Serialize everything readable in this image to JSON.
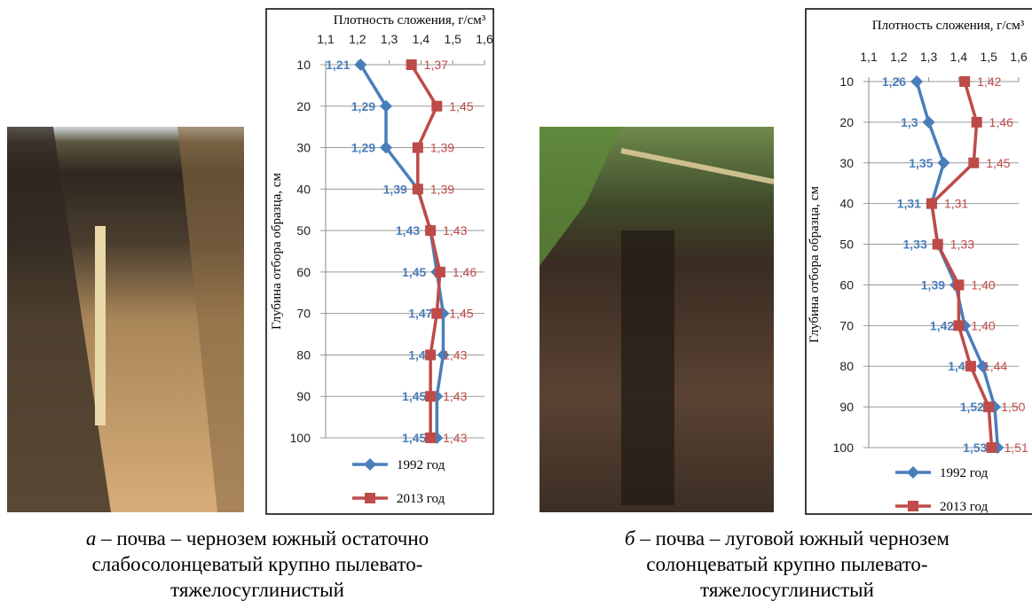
{
  "chart_data": [
    {
      "type": "line",
      "title": "Плотность сложения, г/см³",
      "y_label": "Глубина отбора образца, см",
      "categories": [
        10,
        20,
        30,
        40,
        50,
        60,
        70,
        80,
        90,
        100
      ],
      "y_reversed": true,
      "xlim": [
        1.1,
        1.6
      ],
      "xticks": [
        {
          "value": 1.1,
          "label": "1,1"
        },
        {
          "value": 1.2,
          "label": "1,2"
        },
        {
          "value": 1.3,
          "label": "1,3"
        },
        {
          "value": 1.4,
          "label": "1,4"
        },
        {
          "value": 1.5,
          "label": "1,5"
        },
        {
          "value": 1.6,
          "label": "1,6"
        }
      ],
      "series": [
        {
          "name": "1992 год",
          "color": "#4a7ebb",
          "marker": "diamond",
          "values": [
            1.21,
            1.29,
            1.29,
            1.39,
            1.43,
            1.45,
            1.47,
            1.47,
            1.45,
            1.45
          ],
          "value_labels": [
            "1,21",
            "1,29",
            "1,29",
            "1,39",
            "1,43",
            "1,45",
            "1,47",
            "1,47",
            "1,45",
            "1,45"
          ]
        },
        {
          "name": "2013 год",
          "color": "#be4b48",
          "marker": "square",
          "values": [
            1.37,
            1.45,
            1.39,
            1.39,
            1.43,
            1.46,
            1.45,
            1.43,
            1.43,
            1.43
          ],
          "value_labels": [
            "1,37",
            "1,45",
            "1,39",
            "1,39",
            "1,43",
            "1,46",
            "1,45",
            "1,43",
            "1,43",
            "1,43"
          ]
        }
      ],
      "grid": true
    },
    {
      "type": "line",
      "title": "Плотность сложения, г/см³",
      "y_label": "Глубина отбора образца, см",
      "categories": [
        10,
        20,
        30,
        40,
        50,
        60,
        70,
        80,
        90,
        100
      ],
      "y_reversed": true,
      "xlim": [
        1.1,
        1.6
      ],
      "xticks": [
        {
          "value": 1.1,
          "label": "1,1"
        },
        {
          "value": 1.2,
          "label": "1,2"
        },
        {
          "value": 1.3,
          "label": "1,3"
        },
        {
          "value": 1.4,
          "label": "1,4"
        },
        {
          "value": 1.5,
          "label": "1,5"
        },
        {
          "value": 1.6,
          "label": "1,6"
        }
      ],
      "series": [
        {
          "name": "1992 год",
          "color": "#4a7ebb",
          "marker": "diamond",
          "values": [
            1.26,
            1.3,
            1.35,
            1.31,
            1.33,
            1.39,
            1.42,
            1.48,
            1.52,
            1.53
          ],
          "value_labels": [
            "1,26",
            "1,3",
            "1,35",
            "1,31",
            "1,33",
            "1,39",
            "1,42",
            "1,48",
            "1,52",
            "1,53"
          ]
        },
        {
          "name": "2013 год",
          "color": "#be4b48",
          "marker": "square",
          "values": [
            1.42,
            1.46,
            1.45,
            1.31,
            1.33,
            1.4,
            1.4,
            1.44,
            1.5,
            1.51
          ],
          "value_labels": [
            "1,42",
            "1,46",
            "1,45",
            "1,31",
            "1,33",
            "1,40",
            "1,40",
            "1,44",
            "1,50",
            "1,51"
          ]
        }
      ],
      "grid": true
    }
  ],
  "captions": [
    {
      "letter": "а",
      "lines": [
        "– почва – чернозем южный остаточно",
        "слабосолонцеватый крупно пылевато-",
        "тяжелосуглинистый"
      ]
    },
    {
      "letter": "б",
      "lines": [
        "– почва – луговой южный чернозем",
        "солонцеватый крупно пылевато-",
        "тяжелосуглинистый"
      ]
    }
  ]
}
